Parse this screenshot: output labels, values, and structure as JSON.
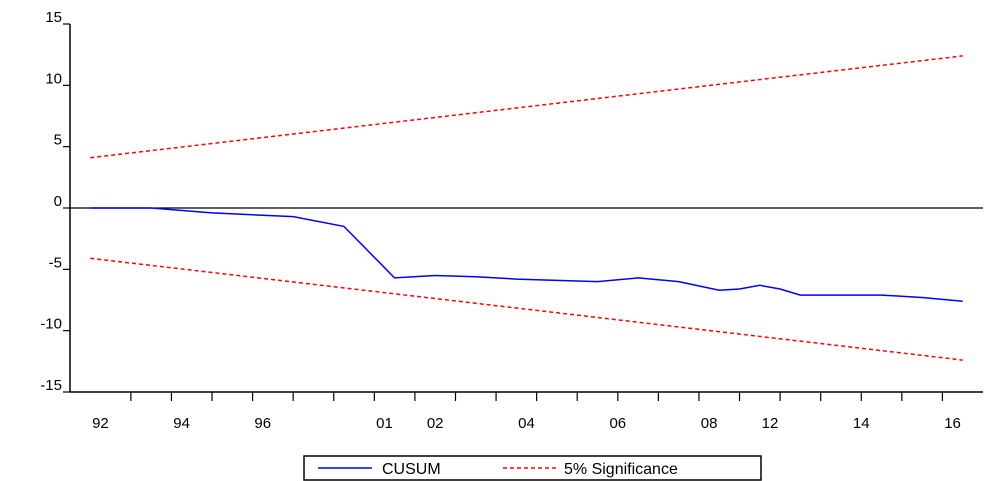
{
  "chart_data": {
    "type": "line",
    "title": "",
    "xlabel": "",
    "ylabel": "",
    "ylim": [
      -15,
      15
    ],
    "y_ticks": [
      15,
      10,
      5,
      0,
      -5,
      -10,
      -15
    ],
    "x_tick_labels": [
      "92",
      "94",
      "96",
      "01",
      "02",
      "04",
      "06",
      "08",
      "12",
      "14",
      "16"
    ],
    "zero_line": true,
    "grid": false,
    "legend_position": "bottom-center",
    "series": [
      {
        "name": "CUSUM",
        "color": "#0000ff",
        "style": "solid",
        "points": [
          [
            0.0,
            0.0
          ],
          [
            3.0,
            0.0
          ],
          [
            6.0,
            -0.4
          ],
          [
            10.0,
            -0.7
          ],
          [
            12.5,
            -1.5
          ],
          [
            15.0,
            -5.7
          ],
          [
            17.0,
            -5.5
          ],
          [
            19.0,
            -5.6
          ],
          [
            21.0,
            -5.8
          ],
          [
            23.0,
            -5.9
          ],
          [
            25.0,
            -6.0
          ],
          [
            27.0,
            -5.7
          ],
          [
            29.0,
            -6.0
          ],
          [
            31.0,
            -6.7
          ],
          [
            32.0,
            -6.6
          ],
          [
            33.0,
            -6.3
          ],
          [
            34.0,
            -6.6
          ],
          [
            35.0,
            -7.1
          ],
          [
            37.0,
            -7.1
          ],
          [
            39.0,
            -7.1
          ],
          [
            41.0,
            -7.3
          ],
          [
            43.0,
            -7.6
          ]
        ]
      },
      {
        "name": "5% Significance",
        "color": "#ff0000",
        "style": "dashed",
        "points": [
          [
            0.0,
            4.1
          ],
          [
            43.0,
            12.4
          ]
        ]
      },
      {
        "name": "5% Significance",
        "color": "#ff0000",
        "style": "dashed",
        "points": [
          [
            0.0,
            -4.1
          ],
          [
            43.0,
            -12.4
          ]
        ]
      }
    ],
    "x_domain": [
      -1,
      44
    ],
    "x_tick_marks": [
      2,
      4,
      6,
      8,
      10,
      12,
      14,
      16,
      18,
      20,
      22,
      24,
      26,
      28,
      30,
      32,
      34,
      36,
      38,
      40,
      42
    ],
    "x_tick_label_positions": [
      0.5,
      4.5,
      8.5,
      14.5,
      17.0,
      21.5,
      26.0,
      30.5,
      33.5,
      38.0,
      42.5
    ]
  }
}
